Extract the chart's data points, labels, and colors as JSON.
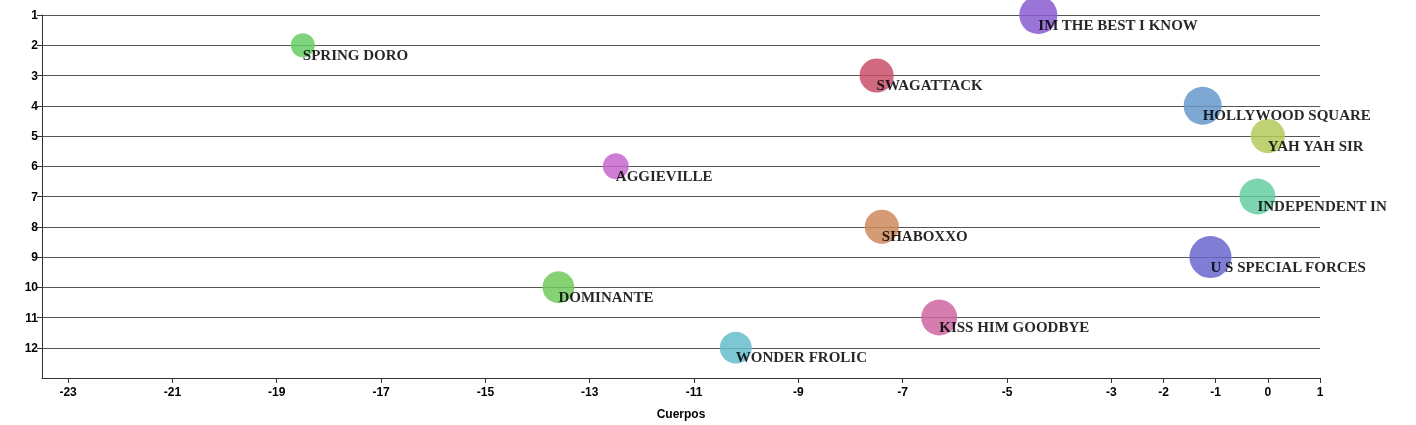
{
  "chart_data": {
    "type": "bubble",
    "xlabel": "Cuerpos",
    "xlim": [
      -23.5,
      1
    ],
    "xticks": [
      -23,
      -21,
      -19,
      -17,
      -15,
      -13,
      -11,
      -9,
      -7,
      -5,
      -3,
      -2,
      -1,
      0,
      1
    ],
    "ylim": [
      13,
      1
    ],
    "yticks": [
      1,
      2,
      3,
      4,
      5,
      6,
      7,
      8,
      9,
      10,
      11,
      12
    ],
    "grid": "y",
    "marker": "circle",
    "series": [
      {
        "name": "IM THE BEST I KNOW",
        "color": "#8a5cd0",
        "x": [
          -4.4
        ],
        "values": [
          1
        ],
        "sizes": [
          0.82
        ]
      },
      {
        "name": "SPRING DORO",
        "color": "#66cc66",
        "x": [
          -18.5
        ],
        "values": [
          2
        ],
        "sizes": [
          0.33
        ]
      },
      {
        "name": "SWAGATTACK",
        "color": "#c9506a",
        "x": [
          -7.5
        ],
        "values": [
          3
        ],
        "sizes": [
          0.66
        ]
      },
      {
        "name": "HOLLYWOOD SQUARE",
        "color": "#6699cc",
        "x": [
          -1.25
        ],
        "values": [
          4
        ],
        "sizes": [
          0.82
        ]
      },
      {
        "name": "YAH YAH SIR",
        "color": "#b3c95a",
        "x": [
          0
        ],
        "values": [
          5
        ],
        "sizes": [
          0.66
        ]
      },
      {
        "name": "AGGIEVILLE",
        "color": "#c566cc",
        "x": [
          -12.5
        ],
        "values": [
          6
        ],
        "sizes": [
          0.38
        ]
      },
      {
        "name": "INDEPENDENT IN",
        "color": "#66cca3",
        "x": [
          -0.2
        ],
        "values": [
          7
        ],
        "sizes": [
          0.73
        ]
      },
      {
        "name": "SHABOXXO",
        "color": "#cc8a5c",
        "x": [
          -7.4
        ],
        "values": [
          8
        ],
        "sizes": [
          0.66
        ]
      },
      {
        "name": "U S SPECIAL FORCES",
        "color": "#6a66cc",
        "x": [
          -1.1
        ],
        "values": [
          9
        ],
        "sizes": [
          1
        ]
      },
      {
        "name": "DOMINANTE",
        "color": "#70c95a",
        "x": [
          -13.6
        ],
        "values": [
          10
        ],
        "sizes": [
          0.58
        ]
      },
      {
        "name": "KISS HIM GOODBYE",
        "color": "#cc66a0",
        "x": [
          -6.3
        ],
        "values": [
          11
        ],
        "sizes": [
          0.73
        ]
      },
      {
        "name": "WONDER FROLIC",
        "color": "#66bccc",
        "x": [
          -10.2
        ],
        "values": [
          12
        ],
        "sizes": [
          0.58
        ]
      }
    ]
  }
}
